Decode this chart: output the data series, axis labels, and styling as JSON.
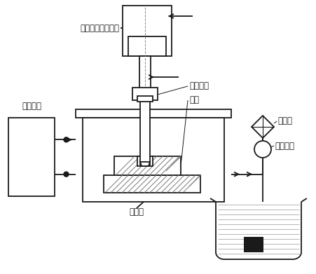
{
  "bg_color": "#ffffff",
  "line_color": "#1a1a1a",
  "labels": {
    "auto_feed": "自动进给调节装置",
    "tool_electrode": "工具电极",
    "workpiece": "工件",
    "pulse_power": "脉冲电源",
    "working_fluid": "工作液",
    "filter": "过滤器",
    "working_pump": "工作液泵"
  },
  "fontsize": 8.5,
  "fig_width": 4.51,
  "fig_height": 3.91,
  "dpi": 100
}
